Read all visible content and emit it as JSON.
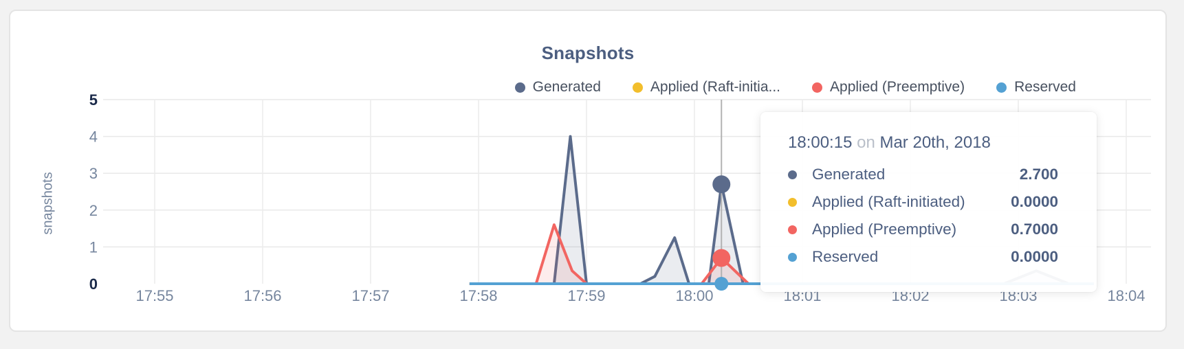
{
  "page": {
    "background_color": "#f2f2f2",
    "card_border_color": "#e4e4e4"
  },
  "chart": {
    "title": "Snapshots",
    "y_axis_label": "snapshots",
    "legend": {
      "items": [
        {
          "label": "Generated",
          "color": "#5b6b8b"
        },
        {
          "label": "Applied (Raft-initia...",
          "color": "#f2be2c"
        },
        {
          "label": "Applied (Preemptive)",
          "color": "#f26561"
        },
        {
          "label": "Reserved",
          "color": "#54a1d3"
        }
      ]
    },
    "tooltip": {
      "time": "18:00:15",
      "conjunction": "on",
      "date": "Mar 20th, 2018",
      "rows": [
        {
          "label": "Generated",
          "value": "2.700",
          "color": "#5b6b8b"
        },
        {
          "label": "Applied (Raft-initiated)",
          "value": "0.0000",
          "color": "#f2be2c"
        },
        {
          "label": "Applied (Preemptive)",
          "value": "0.7000",
          "color": "#f26561"
        },
        {
          "label": "Reserved",
          "value": "0.0000",
          "color": "#54a1d3"
        }
      ]
    }
  },
  "chart_data": {
    "type": "area",
    "title": "Snapshots",
    "xlabel": "",
    "ylabel": "snapshots",
    "ylim": [
      0,
      5
    ],
    "y_ticks": [
      0,
      1,
      2,
      3,
      4,
      5
    ],
    "grid": true,
    "legend_position": "top-right",
    "x_unit": "seconds after 17:55:00 on Mar 20th, 2018",
    "x_ticks": [
      {
        "label": "17:55",
        "sec": 0
      },
      {
        "label": "17:56",
        "sec": 60
      },
      {
        "label": "17:57",
        "sec": 120
      },
      {
        "label": "17:58",
        "sec": 180
      },
      {
        "label": "17:59",
        "sec": 240
      },
      {
        "label": "18:00",
        "sec": 300
      },
      {
        "label": "18:01",
        "sec": 360
      },
      {
        "label": "18:02",
        "sec": 420
      },
      {
        "label": "18:03",
        "sec": 480
      },
      {
        "label": "18:04",
        "sec": 540
      }
    ],
    "series": [
      {
        "name": "Generated",
        "color": "#5b6b8b",
        "fill": "rgba(91,107,139,0.13)",
        "points": [
          [
            175,
            0
          ],
          [
            222,
            0
          ],
          [
            231,
            4.0
          ],
          [
            240,
            0
          ],
          [
            270,
            0
          ],
          [
            278,
            0.2
          ],
          [
            289,
            1.25
          ],
          [
            297,
            0
          ],
          [
            308,
            0
          ],
          [
            315,
            2.7
          ],
          [
            327,
            0
          ],
          [
            472,
            0
          ],
          [
            490,
            0.35
          ],
          [
            508,
            0
          ],
          [
            522,
            0
          ]
        ]
      },
      {
        "name": "Applied (Raft-initiated)",
        "color": "#f2be2c",
        "fill": "rgba(242,190,44,0.12)",
        "points": [
          [
            175,
            0
          ],
          [
            522,
            0
          ]
        ]
      },
      {
        "name": "Applied (Preemptive)",
        "color": "#f26561",
        "fill": "rgba(242,101,97,0.12)",
        "points": [
          [
            175,
            0
          ],
          [
            212,
            0
          ],
          [
            222,
            1.6
          ],
          [
            232,
            0.35
          ],
          [
            240,
            0
          ],
          [
            304,
            0
          ],
          [
            315,
            0.7
          ],
          [
            330,
            0
          ],
          [
            522,
            0
          ]
        ]
      },
      {
        "name": "Reserved",
        "color": "#54a1d3",
        "fill": "rgba(84,161,211,0.12)",
        "points": [
          [
            175,
            0
          ],
          [
            522,
            0
          ]
        ]
      }
    ],
    "highlight": {
      "sec": 315,
      "time": "18:00:15",
      "dots": [
        {
          "series": "Generated",
          "value": 2.7,
          "r": 13
        },
        {
          "series": "Applied (Raft-initiated)",
          "value": 0,
          "r": 9
        },
        {
          "series": "Applied (Preemptive)",
          "value": 0.7,
          "r": 13
        },
        {
          "series": "Reserved",
          "value": 0,
          "r": 10
        }
      ]
    }
  }
}
